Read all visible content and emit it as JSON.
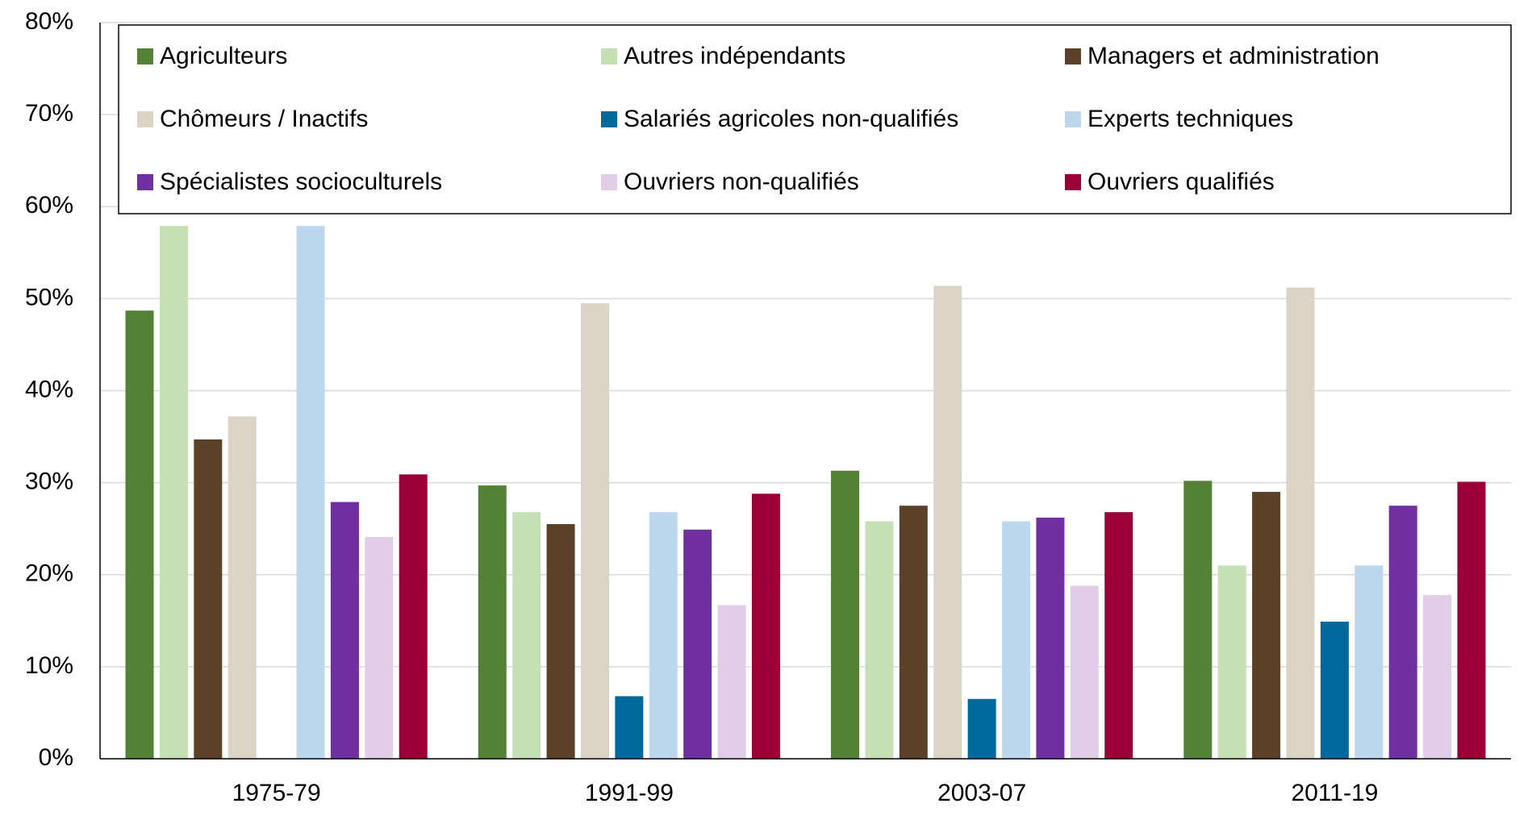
{
  "chart_data": {
    "type": "bar",
    "categories": [
      "1975-79",
      "1991-99",
      "2003-07",
      "2011-19"
    ],
    "series": [
      {
        "name": "Agriculteurs",
        "color": "#538135",
        "values": [
          48.7,
          29.7,
          31.3,
          30.2
        ]
      },
      {
        "name": "Autres indépendants",
        "color": "#c5e0b4",
        "values": [
          57.9,
          26.8,
          25.8,
          21.0
        ]
      },
      {
        "name": "Managers et administration",
        "color": "#5b4128",
        "values": [
          34.7,
          25.5,
          27.5,
          29.0
        ]
      },
      {
        "name": "Chômeurs / Inactifs",
        "color": "#dbd3c5",
        "values": [
          37.2,
          49.5,
          51.4,
          51.2
        ]
      },
      {
        "name": "Salariés agricoles non-qualifiés",
        "color": "#00699b",
        "values": [
          null,
          6.8,
          6.5,
          14.9
        ]
      },
      {
        "name": "Experts techniques",
        "color": "#bdd7ee",
        "values": [
          57.9,
          26.8,
          25.8,
          21.0
        ]
      },
      {
        "name": "Spécialistes socioculturels",
        "color": "#7030a0",
        "values": [
          27.9,
          24.9,
          26.2,
          27.5
        ]
      },
      {
        "name": "Ouvriers non-qualifiés",
        "color": "#e2cde8",
        "values": [
          24.1,
          16.7,
          18.8,
          17.8
        ]
      },
      {
        "name": "Ouvriers qualifiés",
        "color": "#9b0036",
        "values": [
          30.9,
          28.8,
          26.8,
          30.1
        ]
      }
    ],
    "ylim": [
      0,
      80
    ],
    "yticks": [
      {
        "value": 0,
        "label": "0%"
      },
      {
        "value": 10,
        "label": "10%"
      },
      {
        "value": 20,
        "label": "20%"
      },
      {
        "value": 30,
        "label": "30%"
      },
      {
        "value": 40,
        "label": "40%"
      },
      {
        "value": 50,
        "label": "50%"
      },
      {
        "value": 60,
        "label": "60%"
      },
      {
        "value": 70,
        "label": "70%"
      },
      {
        "value": 80,
        "label": "80%"
      }
    ],
    "grid": true,
    "legend": "top"
  }
}
